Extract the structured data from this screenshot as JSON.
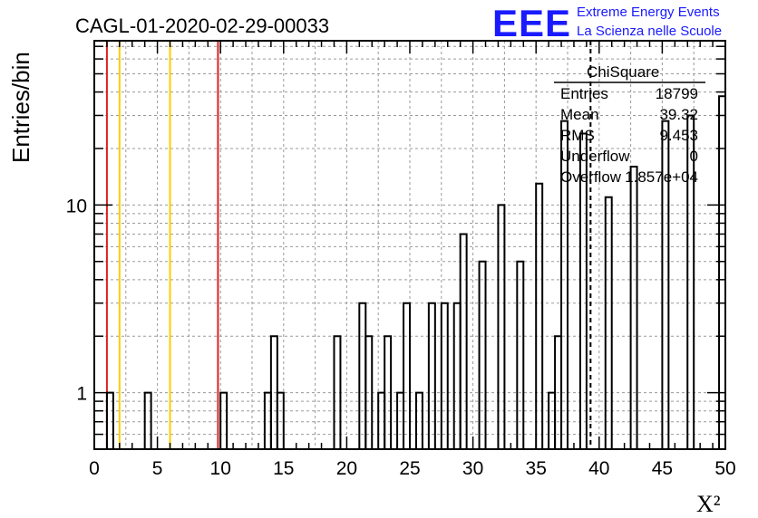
{
  "chart_data": {
    "type": "histogram",
    "title": "CAGL-01-2020-02-29-00033",
    "xlabel": "X²",
    "ylabel": "Entries/bin",
    "xlim": [
      0,
      50
    ],
    "ylim": [
      0.5,
      75
    ],
    "y_scale": "log",
    "grid": true,
    "bin_width": 0.5,
    "x_ticks": [
      0,
      5,
      10,
      15,
      20,
      25,
      30,
      35,
      40,
      45,
      50
    ],
    "y_tick_labels": [
      {
        "value": 1,
        "label": "1"
      },
      {
        "value": 10,
        "label": "10"
      }
    ],
    "bins": [
      {
        "x": 1.0,
        "y": 1
      },
      {
        "x": 4.0,
        "y": 1
      },
      {
        "x": 10.0,
        "y": 1
      },
      {
        "x": 13.5,
        "y": 1
      },
      {
        "x": 14.0,
        "y": 2
      },
      {
        "x": 14.5,
        "y": 1
      },
      {
        "x": 19.0,
        "y": 2
      },
      {
        "x": 21.0,
        "y": 3
      },
      {
        "x": 21.5,
        "y": 2
      },
      {
        "x": 22.5,
        "y": 1
      },
      {
        "x": 23.0,
        "y": 2
      },
      {
        "x": 24.0,
        "y": 1
      },
      {
        "x": 24.5,
        "y": 3
      },
      {
        "x": 25.5,
        "y": 1
      },
      {
        "x": 26.5,
        "y": 3
      },
      {
        "x": 27.5,
        "y": 3
      },
      {
        "x": 28.5,
        "y": 3
      },
      {
        "x": 29.0,
        "y": 7
      },
      {
        "x": 30.5,
        "y": 5
      },
      {
        "x": 32.0,
        "y": 10
      },
      {
        "x": 33.5,
        "y": 5
      },
      {
        "x": 35.0,
        "y": 13
      },
      {
        "x": 36.0,
        "y": 1
      },
      {
        "x": 36.5,
        "y": 2
      },
      {
        "x": 37.0,
        "y": 28
      },
      {
        "x": 38.5,
        "y": 24
      },
      {
        "x": 40.5,
        "y": 11
      },
      {
        "x": 42.5,
        "y": 16
      },
      {
        "x": 45.0,
        "y": 28
      },
      {
        "x": 47.0,
        "y": 30
      },
      {
        "x": 49.5,
        "y": 38
      }
    ],
    "reference_lines": [
      {
        "x": 1.0,
        "color": "#dd2222"
      },
      {
        "x": 2.0,
        "color": "#ffcc00"
      },
      {
        "x": 6.0,
        "color": "#ffcc00"
      },
      {
        "x": 9.8,
        "color": "#dd2222"
      }
    ],
    "mean_line": {
      "x": 39.32,
      "style": "dashed"
    },
    "stats_box": {
      "title": "ChiSquare",
      "rows": [
        {
          "label": "Entries",
          "value": "18799"
        },
        {
          "label": "Mean",
          "value": "39.32"
        },
        {
          "label": "RMS",
          "value": "9.453"
        },
        {
          "label": "Underflow",
          "value": "0"
        },
        {
          "label": "Overflow",
          "value": "1.857e+04"
        }
      ]
    }
  },
  "logo": {
    "mark": "EEE",
    "line1": "Extreme Energy Events",
    "line2": "La Scienza nelle Scuole",
    "color": "#1a1aff"
  }
}
